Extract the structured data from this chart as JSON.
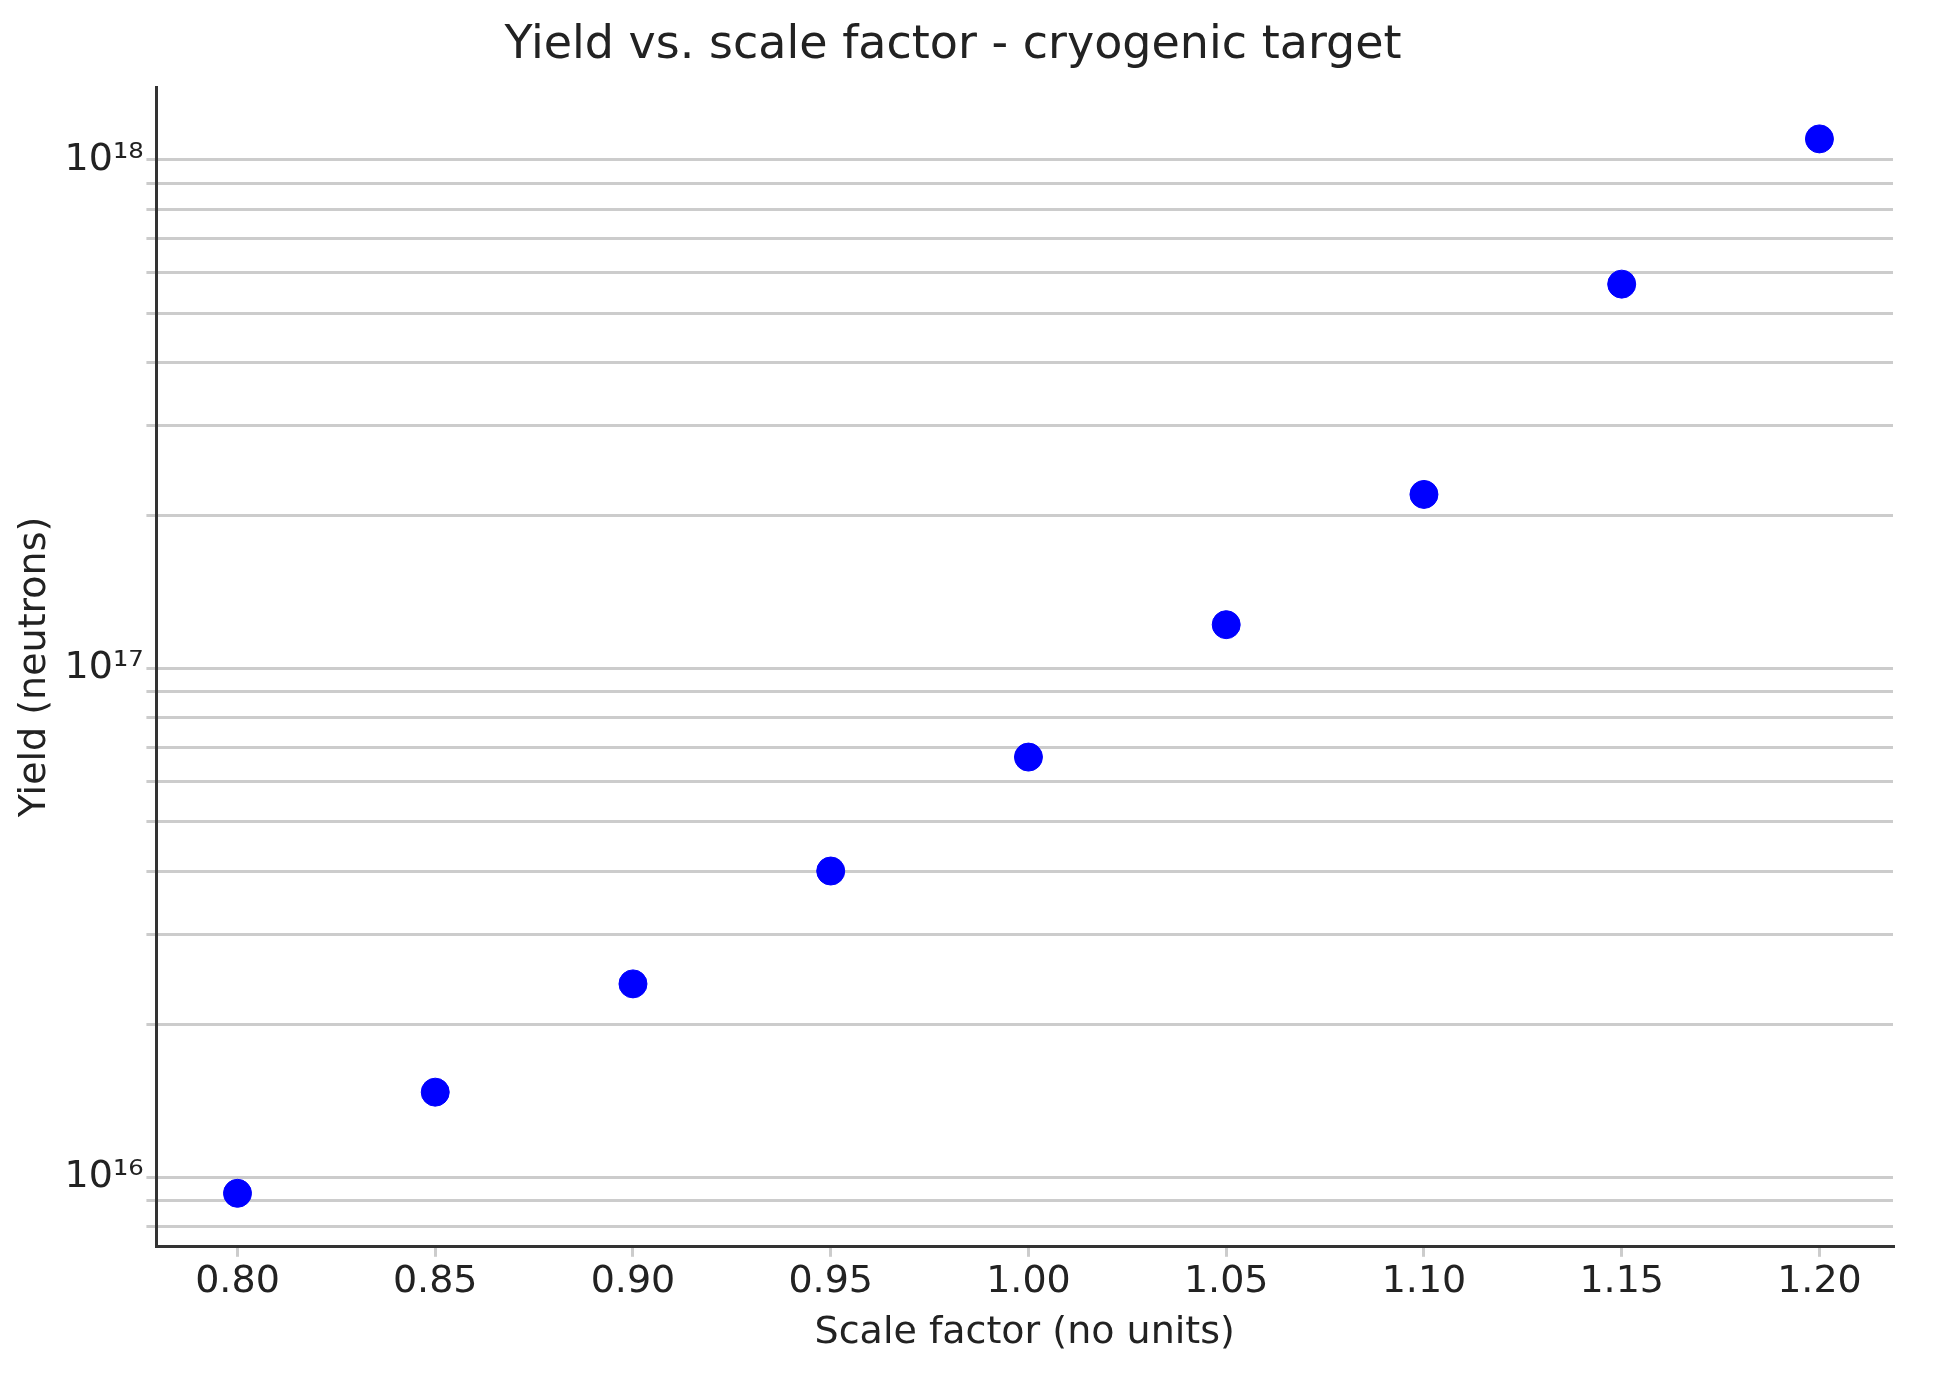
{
  "chart_data": {
    "type": "scatter",
    "title": "Yield vs. scale factor - cryogenic target",
    "xlabel": "Scale factor (no units)",
    "ylabel": "Yield (neutrons)",
    "x": [
      0.8,
      0.85,
      0.9,
      0.95,
      1.0,
      1.05,
      1.1,
      1.15,
      1.2
    ],
    "series": [
      {
        "color": "#0000ff",
        "values": [
          9300000000000000.0,
          1.47e+16,
          2.4e+16,
          4e+16,
          6.7e+16,
          1.22e+17,
          2.2e+17,
          5.7e+17,
          1.1e+18
        ]
      }
    ],
    "xlim": [
      0.7795,
      1.2186
    ],
    "ylim": [
      7300000000000000.0,
      1.39e+18
    ],
    "xticks": [
      {
        "value": 0.8,
        "label": "0.80"
      },
      {
        "value": 0.85,
        "label": "0.85"
      },
      {
        "value": 0.9,
        "label": "0.90"
      },
      {
        "value": 0.95,
        "label": "0.95"
      },
      {
        "value": 1.0,
        "label": "1.00"
      },
      {
        "value": 1.05,
        "label": "1.05"
      },
      {
        "value": 1.1,
        "label": "1.10"
      },
      {
        "value": 1.15,
        "label": "1.15"
      },
      {
        "value": 1.2,
        "label": "1.20"
      }
    ],
    "yticks": [
      {
        "value": 8000000000000000.0,
        "label": null
      },
      {
        "value": 9000000000000000.0,
        "label": null
      },
      {
        "value": 1e+16,
        "label": "10¹⁶"
      },
      {
        "value": 2e+16,
        "label": null
      },
      {
        "value": 3e+16,
        "label": null
      },
      {
        "value": 4e+16,
        "label": null
      },
      {
        "value": 5e+16,
        "label": null
      },
      {
        "value": 6e+16,
        "label": null
      },
      {
        "value": 7e+16,
        "label": null
      },
      {
        "value": 8e+16,
        "label": null
      },
      {
        "value": 9e+16,
        "label": null
      },
      {
        "value": 1e+17,
        "label": "10¹⁷"
      },
      {
        "value": 2e+17,
        "label": null
      },
      {
        "value": 3e+17,
        "label": null
      },
      {
        "value": 4e+17,
        "label": null
      },
      {
        "value": 5e+17,
        "label": null
      },
      {
        "value": 6e+17,
        "label": null
      },
      {
        "value": 7e+17,
        "label": null
      },
      {
        "value": 8e+17,
        "label": null
      },
      {
        "value": 9e+17,
        "label": null
      },
      {
        "value": 1e+18,
        "label": "10¹⁸"
      }
    ],
    "log": "y",
    "grid": "y",
    "marker": "circle",
    "legend": false
  }
}
